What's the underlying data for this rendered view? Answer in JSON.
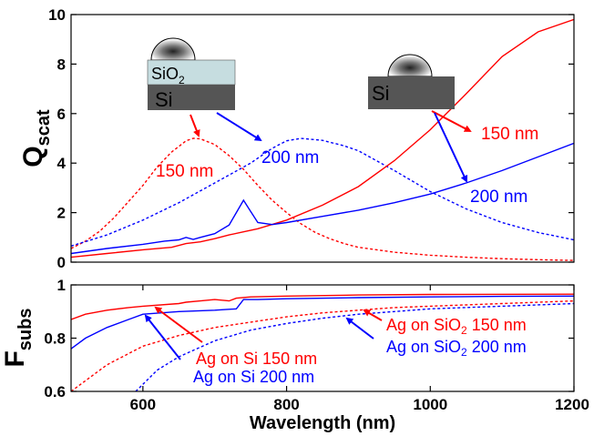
{
  "chart_data": [
    {
      "type": "line",
      "ylabel": "Q",
      "ylabel_sub": "scat",
      "xlim": [
        500,
        1200
      ],
      "ylim": [
        0,
        10
      ],
      "yticks": [
        0,
        2,
        4,
        6,
        8,
        10
      ],
      "grid": false,
      "series": [
        {
          "color": "#ff0000",
          "dashed": true,
          "x": [
            500,
            520,
            540,
            560,
            580,
            600,
            620,
            640,
            660,
            670,
            680,
            700,
            720,
            740,
            760,
            780,
            800,
            820,
            840,
            860,
            880,
            900,
            950,
            1000,
            1050,
            1100,
            1150,
            1200
          ],
          "y": [
            0.55,
            0.85,
            1.25,
            1.8,
            2.45,
            3.1,
            3.85,
            4.45,
            4.9,
            5.0,
            4.98,
            4.75,
            4.3,
            3.75,
            3.1,
            2.5,
            2.0,
            1.55,
            1.2,
            0.95,
            0.75,
            0.6,
            0.4,
            0.28,
            0.2,
            0.14,
            0.1,
            0.07
          ]
        },
        {
          "color": "#0000ff",
          "dashed": true,
          "x": [
            500,
            550,
            600,
            650,
            700,
            750,
            780,
            800,
            820,
            850,
            880,
            900,
            950,
            1000,
            1050,
            1100,
            1150,
            1200
          ],
          "y": [
            0.65,
            1.1,
            1.7,
            2.4,
            3.2,
            4.0,
            4.6,
            4.9,
            5.0,
            4.92,
            4.7,
            4.5,
            3.7,
            2.85,
            2.15,
            1.6,
            1.2,
            0.9
          ]
        },
        {
          "color": "#ff0000",
          "dashed": false,
          "x": [
            500,
            550,
            600,
            640,
            660,
            680,
            700,
            720,
            760,
            800,
            850,
            900,
            950,
            1000,
            1050,
            1100,
            1150,
            1200
          ],
          "y": [
            0.2,
            0.35,
            0.5,
            0.6,
            0.75,
            0.82,
            0.95,
            1.1,
            1.35,
            1.7,
            2.3,
            3.05,
            4.1,
            5.35,
            6.8,
            8.3,
            9.3,
            9.8
          ]
        },
        {
          "color": "#0000ff",
          "dashed": false,
          "x": [
            500,
            550,
            600,
            630,
            650,
            660,
            670,
            680,
            700,
            720,
            730,
            740,
            750,
            760,
            780,
            800,
            850,
            900,
            950,
            1000,
            1050,
            1100,
            1150,
            1200
          ],
          "y": [
            0.35,
            0.55,
            0.72,
            0.85,
            0.9,
            1.0,
            0.92,
            1.0,
            1.15,
            1.5,
            2.0,
            2.5,
            2.05,
            1.6,
            1.52,
            1.6,
            1.85,
            2.1,
            2.4,
            2.75,
            3.2,
            3.7,
            4.25,
            4.8
          ]
        }
      ]
    },
    {
      "type": "line",
      "ylabel": "F",
      "ylabel_sub": "subs",
      "xlabel": "Wavelength (nm)",
      "xlim": [
        500,
        1200
      ],
      "ylim": [
        0.6,
        1.0
      ],
      "xticks": [
        600,
        800,
        1000,
        1200
      ],
      "yticks": [
        0.6,
        0.8,
        1
      ],
      "grid": false,
      "series": [
        {
          "color": "#ff0000",
          "dashed": false,
          "x": [
            500,
            520,
            550,
            580,
            600,
            650,
            660,
            680,
            700,
            720,
            730,
            750,
            800,
            900,
            1000,
            1200
          ],
          "y": [
            0.87,
            0.89,
            0.905,
            0.915,
            0.92,
            0.93,
            0.935,
            0.94,
            0.945,
            0.94,
            0.95,
            0.955,
            0.958,
            0.962,
            0.964,
            0.965
          ]
        },
        {
          "color": "#0000ff",
          "dashed": false,
          "x": [
            500,
            520,
            550,
            580,
            600,
            650,
            700,
            730,
            740,
            760,
            800,
            900,
            1000,
            1100,
            1200
          ],
          "y": [
            0.76,
            0.8,
            0.84,
            0.87,
            0.89,
            0.9,
            0.905,
            0.91,
            0.945,
            0.945,
            0.948,
            0.952,
            0.955,
            0.957,
            0.958
          ]
        },
        {
          "color": "#ff0000",
          "dashed": true,
          "x": [
            500,
            550,
            600,
            650,
            700,
            750,
            800,
            850,
            900,
            950,
            1000,
            1100,
            1200
          ],
          "y": [
            0.6,
            0.7,
            0.77,
            0.81,
            0.84,
            0.86,
            0.88,
            0.895,
            0.905,
            0.915,
            0.92,
            0.93,
            0.94
          ]
        },
        {
          "color": "#0000ff",
          "dashed": true,
          "x": [
            590,
            620,
            650,
            700,
            750,
            800,
            850,
            900,
            950,
            1000,
            1100,
            1200
          ],
          "y": [
            0.6,
            0.68,
            0.73,
            0.79,
            0.83,
            0.855,
            0.875,
            0.89,
            0.9,
            0.91,
            0.92,
            0.93
          ]
        }
      ]
    }
  ],
  "annotations": {
    "top": {
      "inset_left": {
        "layer_oxide": "SiO",
        "layer_oxide_sub": "2",
        "layer_si": "Si"
      },
      "inset_right": {
        "layer_si": "Si"
      },
      "label_red_left": "150 nm",
      "label_blue_left": "200 nm",
      "label_red_right": "150 nm",
      "label_blue_right": "200 nm"
    },
    "bottom": {
      "ag_si_150": "Ag on Si 150 nm",
      "ag_si_200": "Ag on Si 200 nm",
      "ag_sio2_150_prefix": "Ag on SiO",
      "ag_sio2_150_sub": "2",
      "ag_sio2_150_suffix": " 150 nm",
      "ag_sio2_200_prefix": "Ag on SiO",
      "ag_sio2_200_sub": "2",
      "ag_sio2_200_suffix": " 200 nm"
    }
  },
  "colors": {
    "red": "#ff0000",
    "blue": "#0000ff",
    "si": "#555555",
    "sio2": "#c6dde0"
  }
}
